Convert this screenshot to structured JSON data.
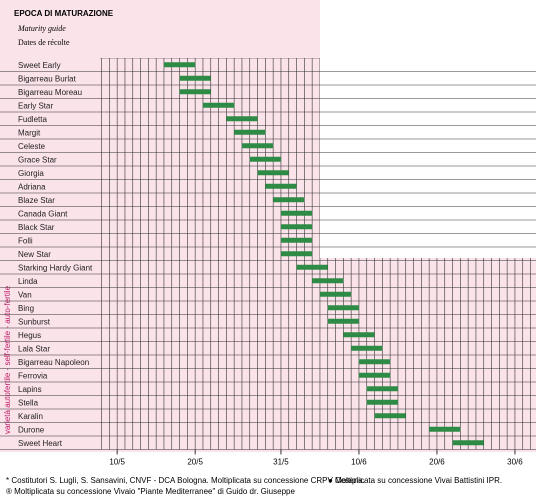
{
  "chart_data": {
    "type": "gantt",
    "title": "EPOCA DI MATURAZIONE",
    "subtitle": "Maturity guide",
    "subtitle2": "Dates de récolte",
    "y_label": "varietà autofertile - self-fertile - auto-fertile",
    "categories": [
      "Sweet Early",
      "Bigarreau Burlat",
      "Bigarreau Moreau",
      "Early Star",
      "Fudletta",
      "Margit",
      "Celeste",
      "Grace Star",
      "Giorgia",
      "Adriana",
      "Blaze Star",
      "Canada Giant",
      "Black Star",
      "Folli",
      "New Star",
      "Starking Hardy Giant",
      "Linda",
      "Van",
      "Bing",
      "Sunburst",
      "Hegus",
      "Lala Star",
      "Bigarreau Napoleon",
      "Ferrovia",
      "Lapins",
      "Stella",
      "Karalin",
      "Durone",
      "Sweet Heart"
    ],
    "start": [
      16,
      18,
      18,
      21,
      24,
      25,
      26,
      27,
      28,
      29,
      30,
      31,
      31,
      31,
      31,
      33,
      35,
      36,
      37,
      37,
      39,
      40,
      41,
      41,
      42,
      42,
      43,
      50,
      53
    ],
    "end": [
      20,
      22,
      22,
      25,
      28,
      29,
      30,
      31,
      32,
      33,
      34,
      35,
      35,
      35,
      35,
      37,
      39,
      40,
      41,
      41,
      43,
      44,
      45,
      45,
      46,
      46,
      47,
      54,
      57
    ],
    "color": "#2e8b45",
    "xlim": [
      7.8,
      63.7
    ],
    "xticks": [
      {
        "value": 10,
        "label": "10/5"
      },
      {
        "value": 20,
        "label": "20/5"
      },
      {
        "value": 31,
        "label": "31/5"
      },
      {
        "value": 41,
        "label": "10/6"
      },
      {
        "value": 51,
        "label": "20/6"
      },
      {
        "value": 61,
        "label": "30/6"
      }
    ],
    "footnotes": [
      "* Costitutori S. Lugli, S. Sansavini, CNVF - DCA Bologna. Moltiplicata su concessione CRPV Cesena.",
      "● Moltiplicata su concessione Vivai Battistini IPR.",
      "® Moltiplicata su concessione Vivaio \"Piante Mediterranee\" di Guido dr. Giuseppe"
    ]
  }
}
